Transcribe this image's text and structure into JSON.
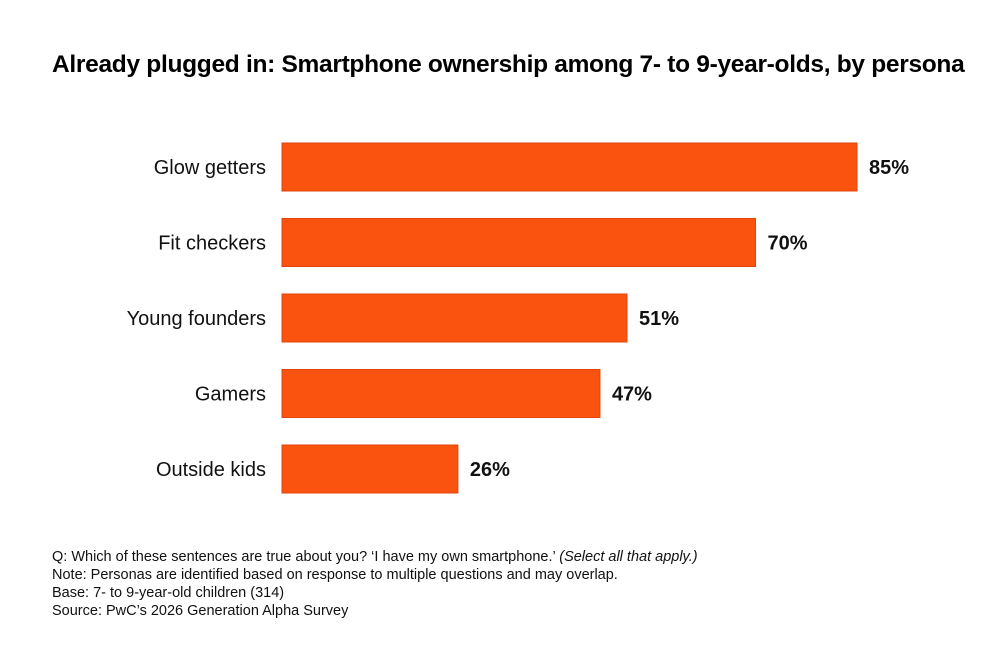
{
  "chart_data": {
    "type": "bar",
    "orientation": "horizontal",
    "title": "Already plugged in: Smartphone ownership among 7- to 9-year-olds, by persona",
    "categories": [
      "Glow getters",
      "Fit checkers",
      "Young founders",
      "Gamers",
      "Outside kids"
    ],
    "values": [
      85,
      70,
      51,
      47,
      26
    ],
    "value_labels": [
      "85%",
      "70%",
      "51%",
      "47%",
      "26%"
    ],
    "unit": "%",
    "xlabel": "",
    "ylabel": "",
    "xlim": [
      0,
      100
    ],
    "grid": false,
    "legend": "none",
    "bar_color": "#FA5310"
  },
  "title": "Already plugged in: Smartphone ownership among 7- to 9-year-olds, by persona",
  "notes": {
    "question": "Q: Which of these sentences are true about you? ‘I have my own smartphone.’",
    "question_italic": "(Select all that apply.)",
    "note": "Note: Personas are identified based on response to multiple questions and may overlap.",
    "base": "Base: 7- to 9-year-old children (314)",
    "source": "Source: PwC’s 2026 Generation Alpha Survey"
  }
}
